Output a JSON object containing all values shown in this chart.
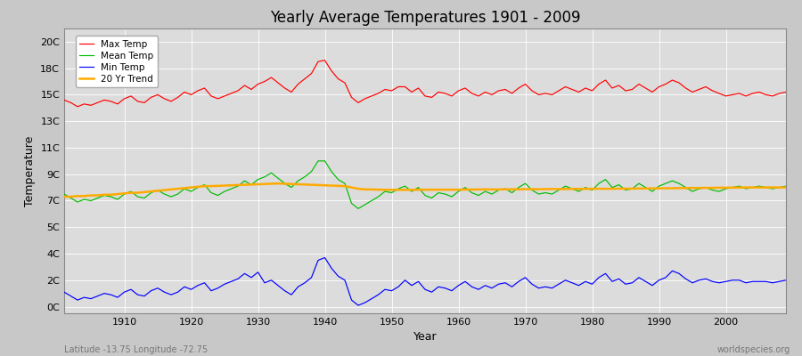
{
  "title": "Yearly Average Temperatures 1901 - 2009",
  "xlabel": "Year",
  "ylabel": "Temperature",
  "x_start": 1901,
  "x_end": 2009,
  "ylim": [
    -0.5,
    21.0
  ],
  "xlim": [
    1901,
    2009
  ],
  "bg_color": "#dcdcdc",
  "fig_color": "#c8c8c8",
  "grid_color": "#ffffff",
  "legend_labels": [
    "Max Temp",
    "Mean Temp",
    "Min Temp",
    "20 Yr Trend"
  ],
  "legend_colors": [
    "#ff0000",
    "#00bb00",
    "#0000ff",
    "#ffaa00"
  ],
  "subtitle": "Latitude -13.75 Longitude -72.75",
  "watermark": "worldspecies.org",
  "max_temp": [
    15.6,
    15.4,
    15.1,
    15.3,
    15.2,
    15.4,
    15.6,
    15.5,
    15.3,
    15.7,
    15.9,
    15.5,
    15.4,
    15.8,
    16.0,
    15.7,
    15.5,
    15.8,
    16.2,
    16.0,
    16.3,
    16.5,
    15.9,
    15.7,
    15.9,
    16.1,
    16.3,
    16.7,
    16.4,
    16.8,
    17.0,
    17.3,
    16.9,
    16.5,
    16.2,
    16.8,
    17.2,
    17.6,
    18.5,
    18.6,
    17.8,
    17.2,
    16.9,
    15.8,
    15.4,
    15.7,
    15.9,
    16.1,
    16.4,
    16.3,
    16.6,
    16.6,
    16.2,
    16.5,
    15.9,
    15.8,
    16.2,
    16.1,
    15.9,
    16.3,
    16.5,
    16.1,
    15.9,
    16.2,
    16.0,
    16.3,
    16.4,
    16.1,
    16.5,
    16.8,
    16.3,
    16.0,
    16.1,
    16.0,
    16.3,
    16.6,
    16.4,
    16.2,
    16.5,
    16.3,
    16.8,
    17.1,
    16.5,
    16.7,
    16.3,
    16.4,
    16.8,
    16.5,
    16.2,
    16.6,
    16.8,
    17.1,
    16.9,
    16.5,
    16.2,
    16.4,
    16.6,
    16.3,
    16.1,
    15.9,
    16.0,
    16.1,
    15.9,
    16.1,
    16.2,
    16.0,
    15.9,
    16.1,
    16.2
  ],
  "mean_temp": [
    8.5,
    8.2,
    7.9,
    8.1,
    8.0,
    8.2,
    8.4,
    8.3,
    8.1,
    8.5,
    8.7,
    8.3,
    8.2,
    8.6,
    8.8,
    8.5,
    8.3,
    8.5,
    8.9,
    8.7,
    9.0,
    9.2,
    8.6,
    8.4,
    8.7,
    8.9,
    9.1,
    9.5,
    9.2,
    9.6,
    9.8,
    10.1,
    9.7,
    9.3,
    9.0,
    9.5,
    9.8,
    10.2,
    11.0,
    11.0,
    10.2,
    9.6,
    9.3,
    7.8,
    7.4,
    7.7,
    8.0,
    8.3,
    8.7,
    8.6,
    8.9,
    9.1,
    8.7,
    9.0,
    8.4,
    8.2,
    8.6,
    8.5,
    8.3,
    8.7,
    9.0,
    8.6,
    8.4,
    8.7,
    8.5,
    8.8,
    8.9,
    8.6,
    9.0,
    9.3,
    8.8,
    8.5,
    8.6,
    8.5,
    8.8,
    9.1,
    8.9,
    8.7,
    9.0,
    8.8,
    9.3,
    9.6,
    9.0,
    9.2,
    8.8,
    8.9,
    9.3,
    9.0,
    8.7,
    9.1,
    9.3,
    9.5,
    9.3,
    9.0,
    8.7,
    8.9,
    9.0,
    8.8,
    8.7,
    8.9,
    9.0,
    9.1,
    8.9,
    9.0,
    9.1,
    9.0,
    8.9,
    9.0,
    9.1
  ],
  "min_temp": [
    1.1,
    0.8,
    0.5,
    0.7,
    0.6,
    0.8,
    1.0,
    0.9,
    0.7,
    1.1,
    1.3,
    0.9,
    0.8,
    1.2,
    1.4,
    1.1,
    0.9,
    1.1,
    1.5,
    1.3,
    1.6,
    1.8,
    1.2,
    1.4,
    1.7,
    1.9,
    2.1,
    2.5,
    2.2,
    2.6,
    1.8,
    2.0,
    1.6,
    1.2,
    0.9,
    1.5,
    1.8,
    2.2,
    3.5,
    3.7,
    2.9,
    2.3,
    2.0,
    0.5,
    0.1,
    0.3,
    0.6,
    0.9,
    1.3,
    1.2,
    1.5,
    2.0,
    1.6,
    1.9,
    1.3,
    1.1,
    1.5,
    1.4,
    1.2,
    1.6,
    1.9,
    1.5,
    1.3,
    1.6,
    1.4,
    1.7,
    1.8,
    1.5,
    1.9,
    2.2,
    1.7,
    1.4,
    1.5,
    1.4,
    1.7,
    2.0,
    1.8,
    1.6,
    1.9,
    1.7,
    2.2,
    2.5,
    1.9,
    2.1,
    1.7,
    1.8,
    2.2,
    1.9,
    1.6,
    2.0,
    2.2,
    2.7,
    2.5,
    2.1,
    1.8,
    2.0,
    2.1,
    1.9,
    1.8,
    1.9,
    2.0,
    2.0,
    1.8,
    1.9,
    1.9,
    1.9,
    1.8,
    1.9,
    2.0
  ],
  "trend_20yr": [
    8.3,
    8.3,
    8.35,
    8.35,
    8.4,
    8.4,
    8.45,
    8.45,
    8.5,
    8.55,
    8.6,
    8.6,
    8.65,
    8.7,
    8.75,
    8.8,
    8.85,
    8.9,
    8.95,
    9.0,
    9.05,
    9.1,
    9.1,
    9.12,
    9.14,
    9.16,
    9.18,
    9.2,
    9.22,
    9.24,
    9.26,
    9.28,
    9.3,
    9.28,
    9.26,
    9.24,
    9.22,
    9.2,
    9.18,
    9.16,
    9.14,
    9.12,
    9.1,
    9.0,
    8.9,
    8.85,
    8.85,
    8.83,
    8.82,
    8.82,
    8.82,
    8.82,
    8.82,
    8.83,
    8.83,
    8.83,
    8.83,
    8.83,
    8.83,
    8.83,
    8.84,
    8.84,
    8.85,
    8.85,
    8.85,
    8.85,
    8.86,
    8.86,
    8.86,
    8.87,
    8.87,
    8.87,
    8.87,
    8.88,
    8.88,
    8.88,
    8.89,
    8.89,
    8.89,
    8.9,
    8.9,
    8.9,
    8.9,
    8.91,
    8.91,
    8.91,
    8.92,
    8.92,
    8.93,
    8.93,
    8.94,
    8.94,
    8.95,
    8.95,
    8.96,
    8.96,
    8.97,
    8.97,
    8.98,
    8.98,
    8.99,
    8.99,
    9.0,
    9.0,
    9.0,
    9.0,
    9.0,
    9.0,
    9.0
  ]
}
